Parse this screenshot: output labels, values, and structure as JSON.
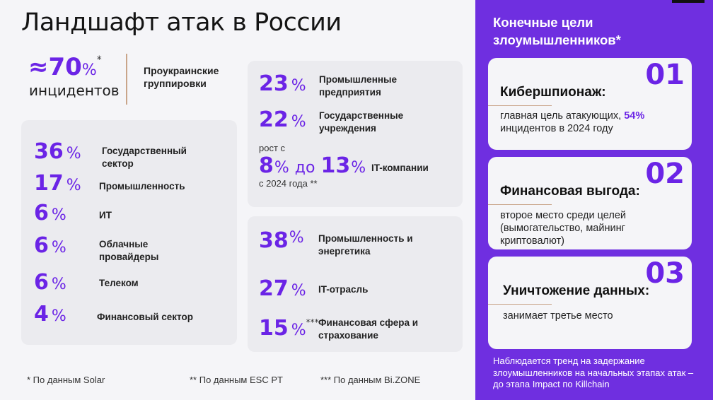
{
  "slide": {
    "title": "Ландшафт атак в России",
    "headline": {
      "value": "≈70",
      "unit": "%",
      "star": "*",
      "subtitle": "инцидентов",
      "label": "Проукраинские группировки"
    },
    "sectors": [
      {
        "value": "36",
        "unit": "%",
        "label": "Государственный сектор"
      },
      {
        "value": "17",
        "unit": "%",
        "label": "Промышленность"
      },
      {
        "value": "6",
        "unit": "%",
        "label": "ИТ"
      },
      {
        "value": "6",
        "unit": "%",
        "label": "Облачные провайдеры"
      },
      {
        "value": "6",
        "unit": "%",
        "label": "Телеком"
      },
      {
        "value": "4",
        "unit": "%",
        "label": "Финансовый сектор"
      }
    ],
    "esc": {
      "items": [
        {
          "value": "23",
          "unit": "%",
          "label": "Промышленные предприятия"
        },
        {
          "value": "22",
          "unit": "%",
          "label": "Государственные учреждения"
        }
      ],
      "growth_prefix": "рост с",
      "growth_from": "8",
      "growth_unit": "%",
      "growth_mid": "до",
      "growth_to": "13",
      "growth_label": "IT-компании",
      "growth_suffix": "с 2024 года **"
    },
    "bizone": {
      "items": [
        {
          "value": "38",
          "unit": "%",
          "label": "Промышленность и энергетика"
        },
        {
          "value": "27",
          "unit": "%",
          "label": "IT-отрасль"
        },
        {
          "value": "15",
          "unit": "%",
          "note": "***",
          "label": "Финансовая сфера и страхование"
        }
      ]
    },
    "footnotes": [
      "* По данным Solar",
      "** По данным ESC PT",
      "*** По данным Bi.ZONE"
    ]
  },
  "side": {
    "title": "Конечные цели злоумышленников*",
    "goals": [
      {
        "number": "01",
        "heading": "Кибершпионаж:",
        "text_before": "главная цель атакующих, ",
        "highlight": "54%",
        "text_after": " инцидентов в 2024 году"
      },
      {
        "number": "02",
        "heading": "Финансовая выгода:",
        "text": "второе место среди целей (вымогательство, майнинг криптовалют)"
      },
      {
        "number": "03",
        "heading": "Уничтожение данных:",
        "text": "занимает третье место"
      }
    ],
    "note": "Наблюдается тренд на задержание злоумышленников на начальных этапах атак – до этапа Impact по Killchain"
  },
  "colors": {
    "accent": "#6b24e6",
    "side_bg": "#6f2fe0",
    "card_bg": "#ebebef",
    "divider": "#c9a58a"
  }
}
